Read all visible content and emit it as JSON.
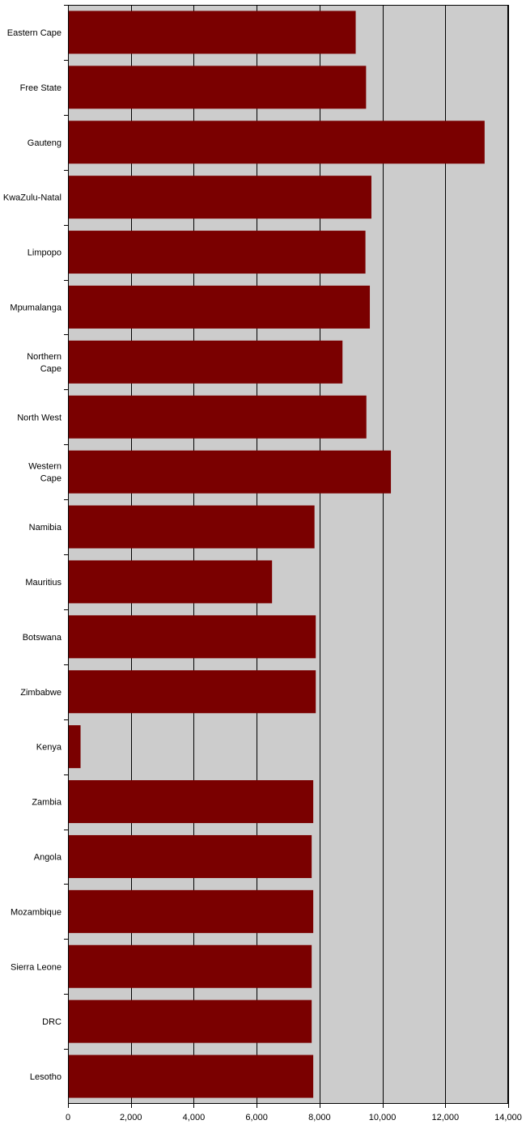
{
  "chart_data": {
    "type": "bar",
    "orientation": "horizontal",
    "categories": [
      [
        "Eastern Cape"
      ],
      [
        "Free State"
      ],
      [
        "Gauteng"
      ],
      [
        "KwaZulu-Natal"
      ],
      [
        "Limpopo"
      ],
      [
        "Mpumalanga"
      ],
      [
        "Northern",
        "Cape"
      ],
      [
        "North West"
      ],
      [
        "Western",
        "Cape"
      ],
      [
        "Namibia"
      ],
      [
        "Mauritius"
      ],
      [
        "Botswana"
      ],
      [
        "Zimbabwe"
      ],
      [
        "Kenya"
      ],
      [
        "Zambia"
      ],
      [
        "Angola"
      ],
      [
        "Mozambique"
      ],
      [
        "Sierra Leone"
      ],
      [
        "DRC"
      ],
      [
        "Lesotho"
      ]
    ],
    "values": [
      9150,
      9480,
      13250,
      9650,
      9460,
      9600,
      8730,
      9490,
      10270,
      7840,
      6490,
      7880,
      7880,
      400,
      7800,
      7750,
      7800,
      7750,
      7750,
      7800
    ],
    "xlim": [
      0,
      14000
    ],
    "xticks": [
      0,
      2000,
      4000,
      6000,
      8000,
      10000,
      12000,
      14000
    ],
    "xtick_labels": [
      "0",
      "2,000",
      "4,000",
      "6,000",
      "8,000",
      "10,000",
      "12,000",
      "14,000"
    ],
    "grid": "vertical",
    "colors": {
      "bar": "#7a0000",
      "plot_background": "#cccccc",
      "gridline": "#000000"
    }
  }
}
